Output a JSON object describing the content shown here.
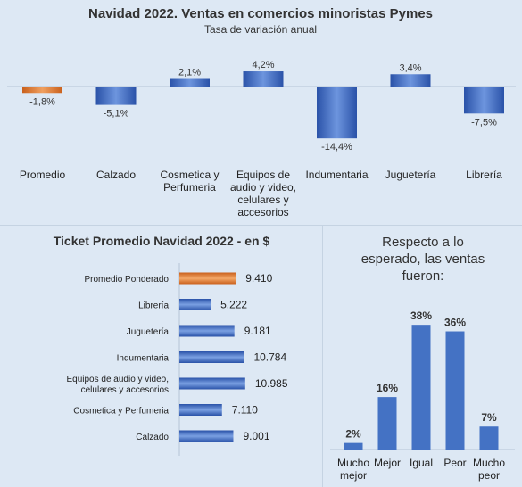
{
  "chart_data": [
    {
      "type": "bar",
      "title": "Navidad 2022. Ventas en comercios minoristas Pymes",
      "subtitle": "Tasa de variación anual",
      "categories": [
        "Promedio",
        "Calzado",
        "Cosmetica y Perfumeria",
        "Equipos de audio y video, celulares y accesorios",
        "Indumentaria",
        "Juguetería",
        "Librería"
      ],
      "values": [
        -1.8,
        -5.1,
        2.1,
        4.2,
        -14.4,
        3.4,
        -7.5
      ],
      "data_labels": [
        "-1,8%",
        "-5,1%",
        "2,1%",
        "4,2%",
        "-14,4%",
        "3,4%",
        "-7,5%"
      ],
      "highlight_index": 0,
      "colors": {
        "highlight": "#e07a2e",
        "bar": "#3a66c0"
      }
    },
    {
      "type": "bar",
      "orientation": "horizontal",
      "title": "Ticket Promedio Navidad 2022 - en $",
      "categories": [
        "Promedio Ponderado",
        "Librería",
        "Juguetería",
        "Indumentaria",
        "Equipos de audio y video, celulares y accesorios",
        "Cosmetica y Perfumeria",
        "Calzado"
      ],
      "values": [
        9410,
        5222,
        9181,
        10784,
        10985,
        7110,
        9001
      ],
      "data_labels": [
        "9.410",
        "5.222",
        "9.181",
        "10.784",
        "10.985",
        "7.110",
        "9.001"
      ],
      "highlight_index": 0,
      "colors": {
        "highlight": "#e07a2e",
        "bar": "#3a66c0"
      }
    },
    {
      "type": "bar",
      "title": "Respecto a lo esperado, las ventas fueron:",
      "categories": [
        "Mucho mejor",
        "Mejor",
        "Igual",
        "Peor",
        "Mucho peor"
      ],
      "values": [
        2,
        16,
        38,
        36,
        7
      ],
      "data_labels": [
        "2%",
        "16%",
        "38%",
        "36%",
        "7%"
      ],
      "colors": {
        "bar": "#4472c4"
      }
    }
  ]
}
